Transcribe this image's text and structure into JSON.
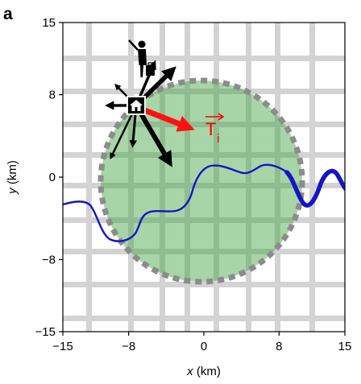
{
  "panel_label": "a",
  "x_axis": {
    "var": "x",
    "unit": " (km)",
    "ticks": [
      {
        "value": -15,
        "label": "−15"
      },
      {
        "value": -8,
        "label": "−8"
      },
      {
        "value": 0,
        "label": "0"
      },
      {
        "value": 8,
        "label": "8"
      },
      {
        "value": 15,
        "label": "15"
      }
    ]
  },
  "y_axis": {
    "var": "y",
    "unit": " (km)",
    "ticks": [
      {
        "value": -15,
        "label": "−15"
      },
      {
        "value": -8,
        "label": "−8"
      },
      {
        "value": 0,
        "label": "0"
      },
      {
        "value": 8,
        "label": "8"
      },
      {
        "value": 15,
        "label": "15"
      }
    ]
  },
  "vector_label": {
    "letter": "T",
    "subscript": "i"
  },
  "colors": {
    "grid": "#bdbdbd",
    "zone_fill": "#3fa23c",
    "zone_border": "#8c8c8c",
    "river": "#1414c8",
    "vector": "#ff1111",
    "arrows": "#000000"
  },
  "icons": [
    "house-icon",
    "traveler-icon"
  ]
}
